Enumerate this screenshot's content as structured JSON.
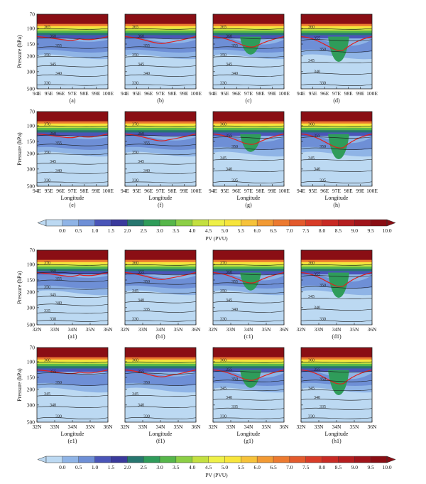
{
  "chart_data": {
    "type": "heatmap",
    "variable": "PV",
    "colorbar": {
      "label": "PV (PVU)",
      "levels": [
        "0.0",
        "0.5",
        "1.0",
        "1.5",
        "2.0",
        "2.5",
        "3.0",
        "3.5",
        "4.0",
        "4.5",
        "5.0",
        "5.5",
        "6.0",
        "6.5",
        "7.0",
        "7.5",
        "8.0",
        "8.5",
        "9.0",
        "9.5",
        "10.0"
      ],
      "colors": [
        "#bcd9f2",
        "#8fb4e6",
        "#6e8fd6",
        "#4a55b8",
        "#3a3a9c",
        "#27766f",
        "#2f9c5a",
        "#56b64a",
        "#8ccf46",
        "#c3e040",
        "#eef048",
        "#f7e53c",
        "#f6c23a",
        "#f29a34",
        "#ec7a30",
        "#e35a2c",
        "#d83c28",
        "#c82a24",
        "#b51e1f",
        "#a0141a",
        "#8a0e14"
      ]
    },
    "top_group": {
      "xlabel": "Longitude",
      "ylabel": "Pressure (hPa)",
      "x_ticks": [
        "94E",
        "95E",
        "96E",
        "97E",
        "98E",
        "99E",
        "100E"
      ],
      "y_ticks": [
        "70",
        "100",
        "150",
        "200",
        "300",
        "500"
      ],
      "panels": [
        {
          "label": "(a)",
          "isentropes": [
            "365",
            "360",
            "355",
            "350",
            "345",
            "340",
            "330"
          ]
        },
        {
          "label": "(b)",
          "isentropes": [
            "365",
            "360",
            "355",
            "350",
            "345",
            "340",
            "330"
          ]
        },
        {
          "label": "(c)",
          "isentropes": [
            "365",
            "360",
            "355",
            "350",
            "345",
            "340",
            "330"
          ]
        },
        {
          "label": "(d)",
          "isentropes": [
            "360",
            "355",
            "350",
            "345",
            "340",
            "330"
          ]
        },
        {
          "label": "(e)",
          "isentropes": [
            "370",
            "360",
            "355",
            "350",
            "345",
            "340",
            "330"
          ]
        },
        {
          "label": "(f)",
          "isentropes": [
            "370",
            "360",
            "355",
            "350",
            "345",
            "340",
            "330"
          ]
        },
        {
          "label": "(g)",
          "isentropes": [
            "360",
            "355",
            "350",
            "345",
            "340",
            "335"
          ]
        },
        {
          "label": "(h)",
          "isentropes": [
            "360",
            "355",
            "350",
            "345",
            "340",
            "335"
          ]
        }
      ]
    },
    "bottom_group": {
      "xlabel": "Longitude",
      "ylabel": "Pressure (hPa)",
      "x_ticks": [
        "32N",
        "33N",
        "34N",
        "35N",
        "36N"
      ],
      "y_ticks": [
        "70",
        "100",
        "150",
        "200",
        "300",
        "500"
      ],
      "panels": [
        {
          "label": "(a1)",
          "isentropes": [
            "370",
            "360",
            "355",
            "350",
            "345",
            "340",
            "335",
            "330"
          ]
        },
        {
          "label": "(b1)",
          "isentropes": [
            "360",
            "355",
            "350",
            "345",
            "340",
            "335",
            "330"
          ]
        },
        {
          "label": "(c1)",
          "isentropes": [
            "370",
            "360",
            "355",
            "350",
            "345",
            "340",
            "330"
          ]
        },
        {
          "label": "(d1)",
          "isentropes": [
            "360",
            "355",
            "350",
            "345",
            "340",
            "330"
          ]
        },
        {
          "label": "(e1)",
          "isentropes": [
            "360",
            "355",
            "350",
            "345",
            "340",
            "330"
          ]
        },
        {
          "label": "(f1)",
          "isentropes": [
            "360",
            "355",
            "350",
            "345",
            "340",
            "330"
          ]
        },
        {
          "label": "(g1)",
          "isentropes": [
            "360",
            "355",
            "350",
            "345",
            "340",
            "335",
            "330"
          ]
        },
        {
          "label": "(h1)",
          "isentropes": [
            "360",
            "355",
            "350",
            "345",
            "340",
            "335",
            "330"
          ]
        }
      ]
    }
  }
}
